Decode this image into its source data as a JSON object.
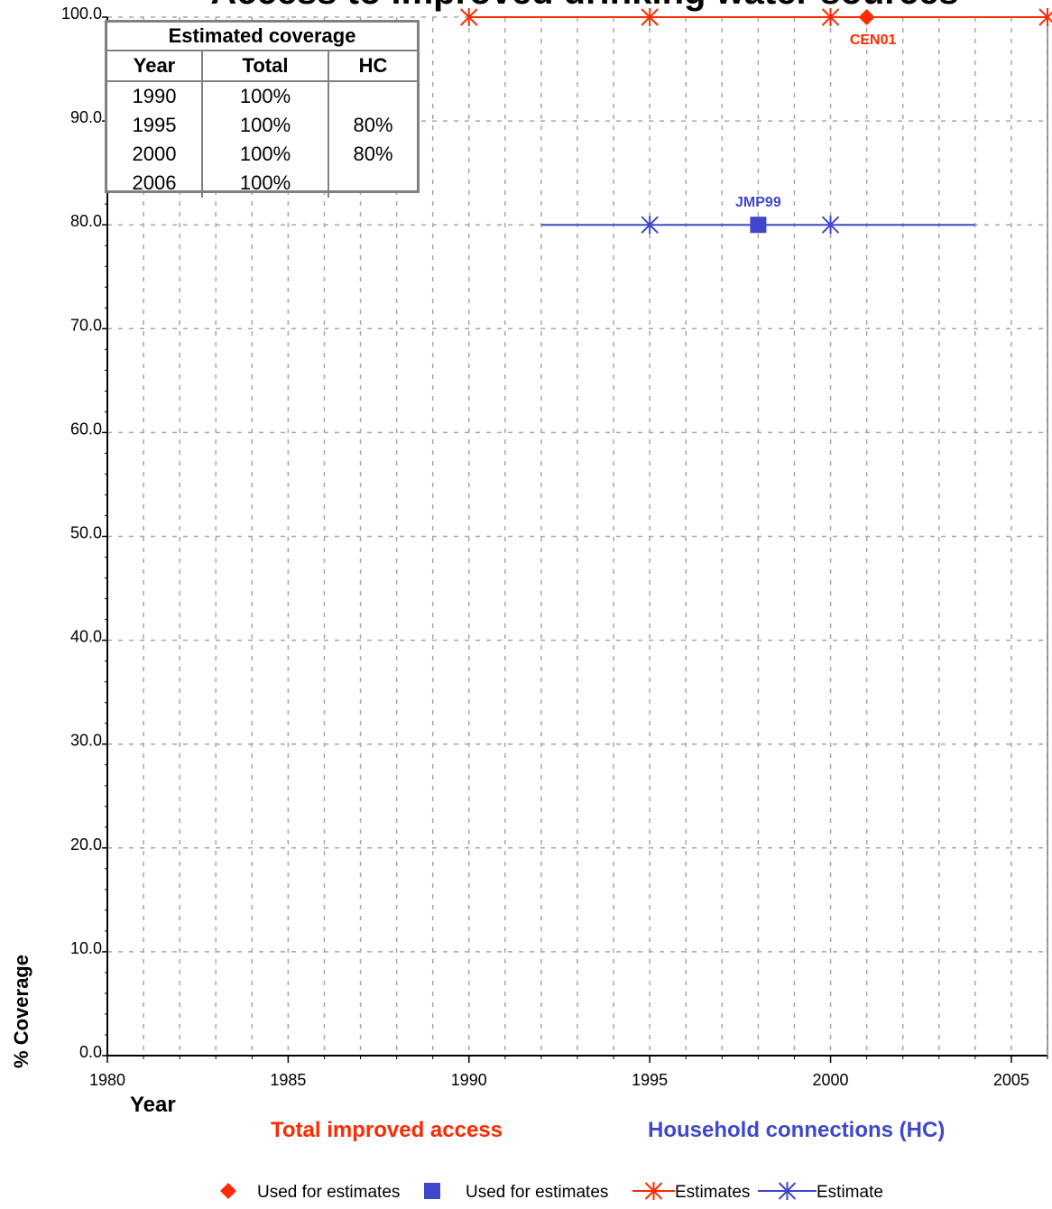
{
  "chart_data": {
    "type": "line",
    "title": "Access to improved drinking water sources",
    "xlabel": "Year",
    "ylabel": "% Coverage",
    "xlim": [
      1980,
      2006
    ],
    "ylim": [
      0,
      100
    ],
    "x_ticks": [
      "1980",
      "1985",
      "1990",
      "1995",
      "2000",
      "2005"
    ],
    "y_ticks": [
      "0.0",
      "10.0",
      "20.0",
      "30.0",
      "40.0",
      "50.0",
      "60.0",
      "70.0",
      "80.0",
      "90.0",
      "100.0"
    ],
    "grid": true,
    "series": [
      {
        "name": "Estimates",
        "group": "Total improved access",
        "color": "#ff2a00",
        "marker": "asterisk",
        "line_x": [
          1990,
          2006
        ],
        "line_y": [
          100,
          100
        ],
        "points": [
          [
            1990,
            100
          ],
          [
            1995,
            100
          ],
          [
            2000,
            100
          ],
          [
            2006,
            100
          ]
        ]
      },
      {
        "name": "Estimate",
        "group": "Household connections (HC)",
        "color": "#3f48cc",
        "marker": "asterisk",
        "line_x": [
          1992,
          2004
        ],
        "line_y": [
          80,
          80
        ],
        "points": [
          [
            1995,
            80
          ],
          [
            2000,
            80
          ]
        ]
      },
      {
        "name": "Used for estimates",
        "group": "Total improved access",
        "color": "#ff2a00",
        "marker": "diamond",
        "points": [
          [
            2001,
            100
          ]
        ],
        "labels": [
          "CEN01"
        ]
      },
      {
        "name": "Used for estimates",
        "group": "Household connections (HC)",
        "color": "#3f48cc",
        "marker": "square",
        "points": [
          [
            1998,
            80
          ]
        ],
        "labels": [
          "JMP99"
        ]
      }
    ],
    "subtitles": {
      "total": "Total improved access",
      "hc": "Household connections (HC)"
    },
    "legend": {
      "placement": "bottom",
      "items": [
        {
          "label": "Used for estimates",
          "marker": "diamond",
          "color": "#ff2a00"
        },
        {
          "label": "Used for estimates",
          "marker": "square",
          "color": "#3f48cc"
        },
        {
          "label": "Estimates",
          "marker": "line-asterisk",
          "color": "#ff2a00"
        },
        {
          "label": "Estimate",
          "marker": "line-asterisk",
          "color": "#3f48cc"
        }
      ]
    }
  },
  "table": {
    "caption": "Estimated coverage",
    "headers": [
      "Year",
      "Total",
      "HC"
    ],
    "rows": [
      [
        "1990",
        "100%",
        ""
      ],
      [
        "1995",
        "100%",
        "80%"
      ],
      [
        "2000",
        "100%",
        "80%"
      ],
      [
        "2006",
        "100%",
        ""
      ]
    ]
  }
}
